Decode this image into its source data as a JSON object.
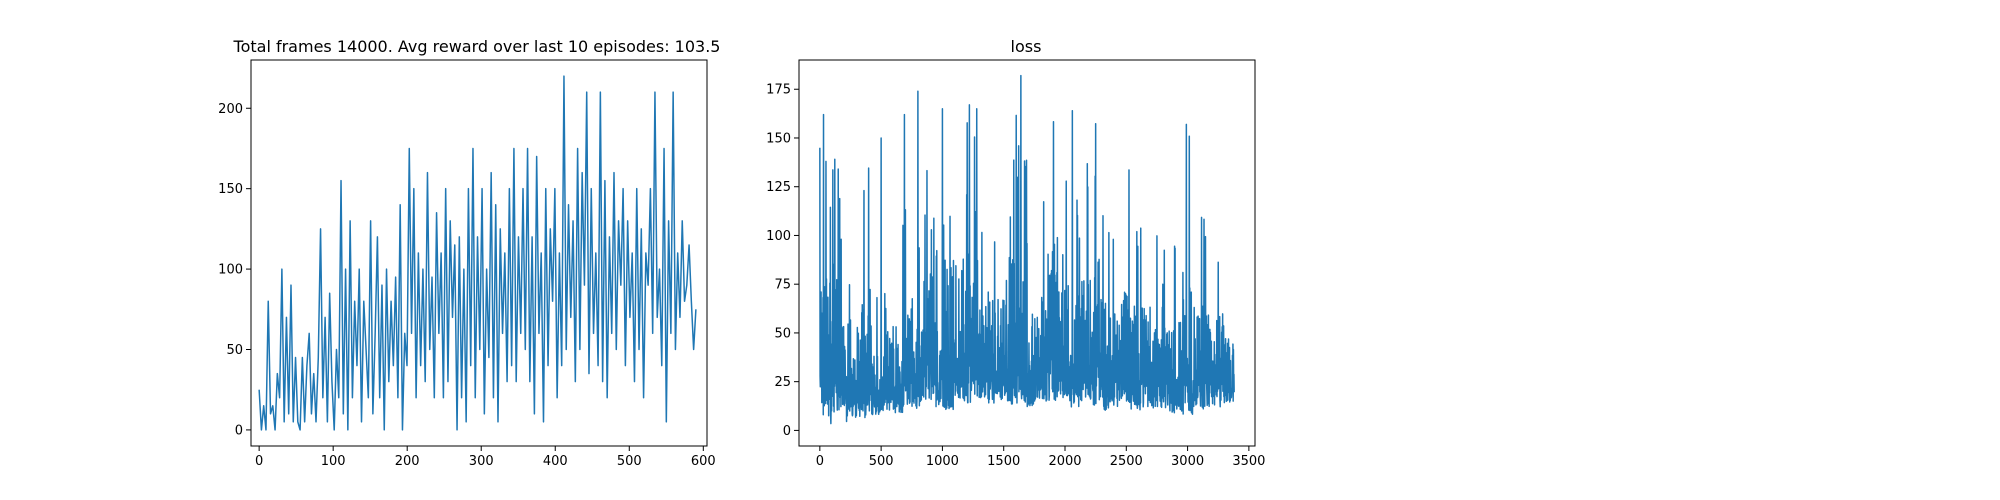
{
  "chart_data": [
    {
      "type": "line",
      "title": "Total frames 14000. Avg reward over last 10 episodes: 103.5",
      "xlabel": "",
      "ylabel": "",
      "xlim": [
        -11,
        605
      ],
      "ylim": [
        -10,
        230
      ],
      "xticks": [
        0,
        100,
        200,
        300,
        400,
        500,
        600
      ],
      "yticks": [
        0,
        50,
        100,
        150,
        200
      ],
      "grid": false,
      "color": "#1f77b4",
      "series": [
        {
          "values": [
            25,
            0,
            15,
            0,
            80,
            10,
            15,
            0,
            35,
            20,
            100,
            5,
            70,
            10,
            90,
            5,
            45,
            5,
            0,
            45,
            5,
            40,
            60,
            10,
            35,
            5,
            45,
            125,
            20,
            70,
            5,
            85,
            30,
            0,
            50,
            20,
            155,
            10,
            100,
            0,
            130,
            20,
            80,
            40,
            100,
            5,
            80,
            50,
            20,
            130,
            10,
            60,
            120,
            20,
            90,
            0,
            100,
            30,
            80,
            40,
            95,
            20,
            140,
            0,
            60,
            40,
            175,
            60,
            150,
            20,
            110,
            40,
            100,
            30,
            160,
            50,
            95,
            20,
            135,
            60,
            110,
            20,
            150,
            30,
            130,
            70,
            115,
            0,
            120,
            20,
            100,
            5,
            150,
            40,
            175,
            20,
            120,
            50,
            150,
            10,
            100,
            45,
            160,
            20,
            140,
            5,
            125,
            60,
            110,
            30,
            150,
            40,
            175,
            30,
            120,
            60,
            150,
            50,
            175,
            30,
            120,
            10,
            170,
            60,
            110,
            5,
            150,
            40,
            125,
            80,
            150,
            20,
            110,
            40,
            220,
            50,
            140,
            70,
            130,
            30,
            175,
            50,
            160,
            90,
            210,
            35,
            150,
            60,
            110,
            40,
            210,
            30,
            155,
            20,
            120,
            60,
            160,
            50,
            130,
            90,
            150,
            40,
            130,
            70,
            110,
            30,
            150,
            50,
            125,
            20,
            110,
            90,
            150,
            60,
            210,
            70,
            100,
            40,
            175,
            5,
            130,
            60,
            210,
            50,
            110,
            70,
            130,
            80,
            90,
            115,
            80,
            50,
            75
          ]
        }
      ]
    },
    {
      "type": "line",
      "title": "loss",
      "xlabel": "",
      "ylabel": "",
      "xlim": [
        -170,
        3550
      ],
      "ylim": [
        -8,
        190
      ],
      "xticks": [
        0,
        500,
        1000,
        1500,
        2000,
        2500,
        3000,
        3500
      ],
      "yticks": [
        0,
        25,
        50,
        75,
        100,
        125,
        150,
        175
      ],
      "grid": false,
      "color": "#1f77b4",
      "series": [
        {
          "min": [
            5,
            3,
            4,
            6,
            5,
            8,
            10,
            9,
            12,
            11,
            14,
            12,
            10,
            15,
            13,
            16,
            14,
            15,
            13,
            14,
            12,
            15,
            14,
            13,
            12,
            15,
            13,
            10,
            12,
            14,
            9,
            12,
            11,
            10,
            9,
            8,
            10,
            11,
            12,
            14
          ],
          "max": [
            145,
            162,
            138,
            100,
            135,
            70,
            95,
            100,
            123,
            95,
            150,
            110,
            175,
            95,
            165,
            120,
            140,
            125,
            167,
            150,
            110,
            125,
            182,
            140,
            130,
            140,
            165,
            125,
            115,
            140,
            118,
            125,
            105,
            115,
            105,
            157,
            118,
            110,
            110,
            87
          ],
          "peaks": [
            {
              "x": 0,
              "y": 145
            },
            {
              "x": 30,
              "y": 162
            },
            {
              "x": 50,
              "y": 138
            },
            {
              "x": 150,
              "y": 134
            },
            {
              "x": 360,
              "y": 123
            },
            {
              "x": 500,
              "y": 150
            },
            {
              "x": 690,
              "y": 162
            },
            {
              "x": 800,
              "y": 174
            },
            {
              "x": 1000,
              "y": 165
            },
            {
              "x": 1220,
              "y": 167
            },
            {
              "x": 1280,
              "y": 165
            },
            {
              "x": 1640,
              "y": 182
            },
            {
              "x": 2060,
              "y": 164
            },
            {
              "x": 2990,
              "y": 157
            }
          ]
        }
      ]
    }
  ]
}
